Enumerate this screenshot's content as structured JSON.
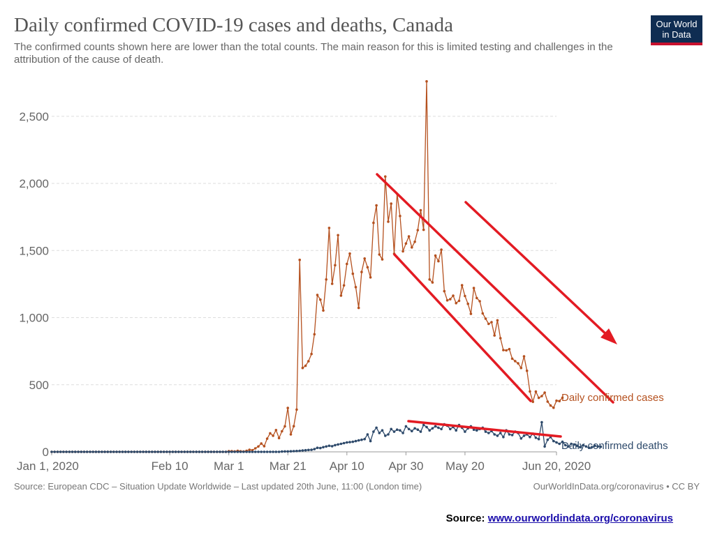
{
  "header": {
    "title": "Daily confirmed COVID-19 cases and deaths, Canada",
    "subtitle": "The confirmed counts shown here are lower than the total counts. The main reason for this is limited testing and challenges in the attribution of the cause of death.",
    "logo_line1": "Our World",
    "logo_line2": "in Data"
  },
  "footer": {
    "source_note": "Source: European CDC – Situation Update Worldwide – Last updated 20th June, 11:00 (London time)",
    "attribution": "OurWorldInData.org/coronavirus • CC BY",
    "source_label": "Source:",
    "source_link": "www.ourworldindata.org/coronavirus"
  },
  "colors": {
    "cases": "#b5511f",
    "deaths": "#2e4a6b",
    "annotation": "#e31b23",
    "grid": "#dddddd"
  },
  "chart_data": {
    "type": "line",
    "x_start": "2020-01-01",
    "x_end": "2020-06-20",
    "x_ticks": [
      "Jan 1, 2020",
      "Feb 10",
      "Mar 1",
      "Mar 21",
      "Apr 10",
      "Apr 30",
      "May 20",
      "Jun 20, 2020"
    ],
    "y_ticks": [
      "0",
      "500",
      "1,000",
      "1,500",
      "2,000",
      "2,500"
    ],
    "ylim": [
      0,
      2600
    ],
    "grid": "horizontal-dashed",
    "series": [
      {
        "name": "Daily confirmed cases",
        "segments": [
          {
            "start": "2020-01-01",
            "values": [
              0,
              0,
              0,
              0,
              0,
              0,
              0,
              0,
              0,
              0,
              0,
              0,
              0,
              0,
              0,
              0,
              0,
              0,
              0,
              0,
              0,
              0,
              0,
              0,
              0,
              0,
              0,
              0,
              0,
              0,
              0,
              0,
              0,
              0,
              0,
              0,
              0,
              0,
              0,
              0,
              0,
              0,
              0,
              0,
              0,
              0,
              0,
              0,
              0,
              0,
              0,
              0,
              0,
              0,
              0,
              0,
              0,
              0,
              0,
              0
            ]
          },
          {
            "start": "2020-03-01",
            "values": [
              5,
              5,
              3,
              8,
              4,
              2,
              8,
              15,
              12,
              26,
              40,
              62,
              42,
              98,
              138,
              120,
              162,
              103,
              153,
              190,
              327,
              130,
              191,
              315,
              1430,
              625,
              641,
              675,
              729,
              876,
              1169,
              1134,
              1053,
              1284,
              1668,
              1252,
              1390,
              1614,
              1164,
              1240,
              1400,
              1477,
              1327,
              1227,
              1072,
              1340,
              1440,
              1375,
              1300,
              1706,
              1836,
              1470,
              1434,
              2051,
              1715,
              1849,
              1476,
              1922,
              1757,
              1494,
              1552,
              1605,
              1523,
              1565,
              1652,
              1800,
              1654,
              2760,
              1284,
              1262,
              1462,
              1420,
              1506,
              1197,
              1129,
              1137,
              1163,
              1108,
              1125,
              1241,
              1161,
              1103,
              1028,
              1220,
              1146,
              1122,
              1031,
              992,
              953,
              966,
              867,
              980,
              847,
              758,
              756,
              765,
              694,
              676,
              659,
              625,
              711,
              604,
              450,
              373,
              449,
              402,
              415,
              441,
              374,
              345,
              329,
              381,
              378,
              403
            ]
          }
        ]
      },
      {
        "name": "Daily confirmed deaths",
        "segments": [
          {
            "start": "2020-01-01",
            "values": [
              0,
              0,
              0,
              0,
              0,
              0,
              0,
              0,
              0,
              0,
              0,
              0,
              0,
              0,
              0,
              0,
              0,
              0,
              0,
              0,
              0,
              0,
              0,
              0,
              0,
              0,
              0,
              0,
              0,
              0,
              0,
              0,
              0,
              0,
              0,
              0,
              0,
              0,
              0,
              0,
              0,
              0,
              0,
              0,
              0,
              0,
              0,
              0,
              0,
              0,
              0,
              0,
              0,
              0,
              0,
              0,
              0,
              0,
              0,
              0,
              0,
              0,
              0,
              0,
              0,
              0,
              0,
              0,
              0,
              0,
              0,
              0,
              0,
              0,
              0,
              0,
              0,
              0,
              2,
              3,
              3,
              4,
              5,
              6,
              8,
              10,
              12,
              14,
              15,
              20,
              30,
              28,
              35,
              40,
              45,
              42,
              50,
              55,
              60,
              65,
              70,
              72,
              75,
              80,
              85,
              90,
              95,
              130,
              80,
              150,
              180,
              140,
              160,
              120,
              130,
              170,
              150,
              165,
              160,
              140,
              190,
              170,
              155,
              175,
              165,
              150,
              200,
              185,
              160,
              175,
              190,
              180,
              170,
              205,
              195,
              170,
              185,
              160,
              200,
              180,
              150,
              175,
              190,
              165,
              160,
              170,
              180,
              150,
              140,
              155,
              130,
              120,
              140,
              110,
              160,
              130,
              125,
              150,
              140,
              100,
              120,
              130,
              110,
              135,
              105,
              95,
              220,
              40,
              90,
              110,
              80,
              70,
              60,
              75,
              50,
              40,
              60,
              55,
              45,
              35,
              50,
              40,
              30,
              35,
              45,
              40,
              38
            ]
          }
        ]
      }
    ],
    "labels": [
      "Daily confirmed cases",
      "Daily confirmed deaths"
    ]
  }
}
